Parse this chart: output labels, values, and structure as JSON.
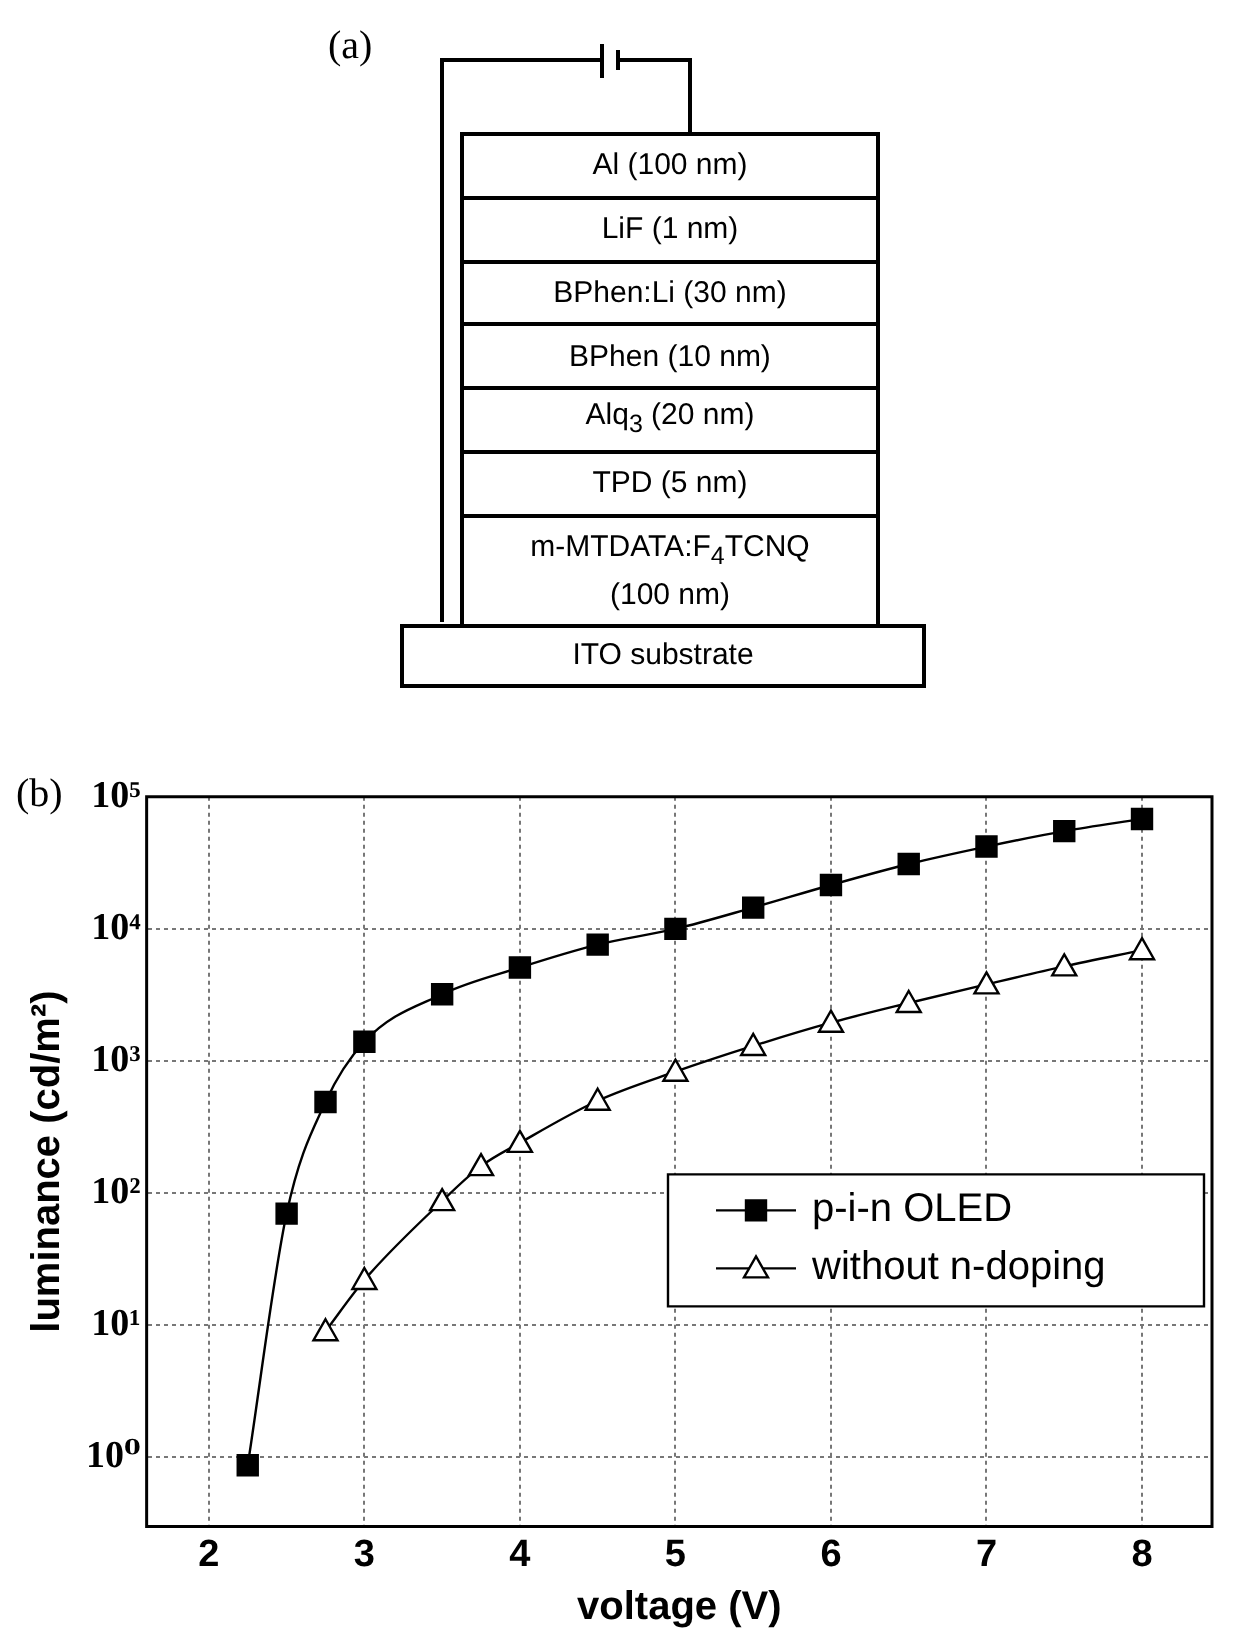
{
  "chart_data": [
    {
      "type": "other",
      "title": "(a)",
      "annotations": [
        "Al (100 nm)",
        "LiF (1 nm)",
        "BPhen:Li (30 nm)",
        "BPhen (10 nm)",
        "Alq$_{3}$ (20 nm)",
        "TPD (5 nm)",
        "m-MTDATA:F$_{4}$TCNQ (100 nm)",
        "ITO substrate"
      ]
    },
    {
      "type": "line",
      "title": "(b)",
      "xlabel": "voltage (V)",
      "ylabel": "luminance (cd/m²)",
      "log": "y",
      "grid": true,
      "legend": "bottom right",
      "xlim": [
        1.6,
        8.45
      ],
      "xticks": [
        2,
        3,
        4,
        5,
        6,
        7,
        8
      ],
      "ylim": [
        0.3,
        100000
      ],
      "yticks": [
        {
          "value": 1,
          "label": "10⁰"
        },
        {
          "value": 10,
          "label": "10¹"
        },
        {
          "value": 100,
          "label": "10²"
        },
        {
          "value": 1000,
          "label": "10³"
        },
        {
          "value": 10000,
          "label": "10⁴"
        },
        {
          "value": 100000,
          "label": "10⁵"
        }
      ],
      "series": [
        {
          "name": "p-i-n OLED",
          "color": "#000000",
          "marker": "square",
          "x": [
            2.25,
            2.5,
            2.75,
            3,
            3.5,
            4,
            4.5,
            5,
            5.5,
            6,
            6.5,
            7,
            7.5,
            8
          ],
          "values": [
            0.87,
            70,
            490,
            1400,
            3200,
            5100,
            7600,
            10000,
            14500,
            21500,
            31000,
            42000,
            55000,
            68000
          ]
        },
        {
          "name": "without n-doping",
          "color": "#000000",
          "marker": "triangle",
          "x": [
            2.75,
            3,
            3.5,
            3.75,
            4,
            4.5,
            5,
            5.5,
            6,
            6.5,
            7,
            7.5,
            8
          ],
          "values": [
            9,
            22,
            87,
            160,
            240,
            500,
            830,
            1300,
            1950,
            2750,
            3800,
            5200,
            6900
          ]
        }
      ]
    }
  ]
}
